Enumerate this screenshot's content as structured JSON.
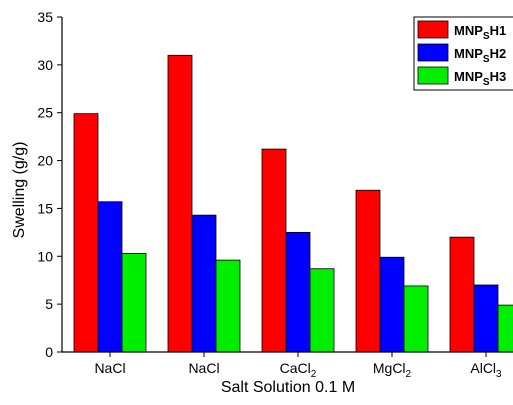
{
  "chart_data": {
    "type": "bar",
    "xlabel": "Salt Solution 0.1 M",
    "ylabel": "Swelling (g/g)",
    "ylim": [
      0,
      35
    ],
    "yticks": [
      0,
      5,
      10,
      15,
      20,
      25,
      30,
      35
    ],
    "categories": [
      {
        "base": "NaCl",
        "sub": "",
        "tail": ""
      },
      {
        "base": "NaCl",
        "sub": "",
        "tail": ""
      },
      {
        "base": "CaCl",
        "sub": "2",
        "tail": ""
      },
      {
        "base": "MgCl",
        "sub": "2",
        "tail": ""
      },
      {
        "base": "AlCl",
        "sub": "3",
        "tail": ""
      }
    ],
    "series": [
      {
        "name_base": "MNP",
        "name_sub": "S",
        "name_tail": "H1",
        "color": "#ff0000",
        "values": [
          24.9,
          31.0,
          21.2,
          16.9,
          12.0
        ]
      },
      {
        "name_base": "MNP",
        "name_sub": "S",
        "name_tail": "H2",
        "color": "#0000ff",
        "values": [
          15.7,
          14.3,
          12.5,
          9.9,
          7.0
        ]
      },
      {
        "name_base": "MNP",
        "name_sub": "S",
        "name_tail": "H3",
        "color": "#00ee00",
        "values": [
          10.3,
          9.6,
          8.7,
          6.9,
          4.9
        ]
      }
    ],
    "legend_position": "top-right",
    "grid": false
  }
}
